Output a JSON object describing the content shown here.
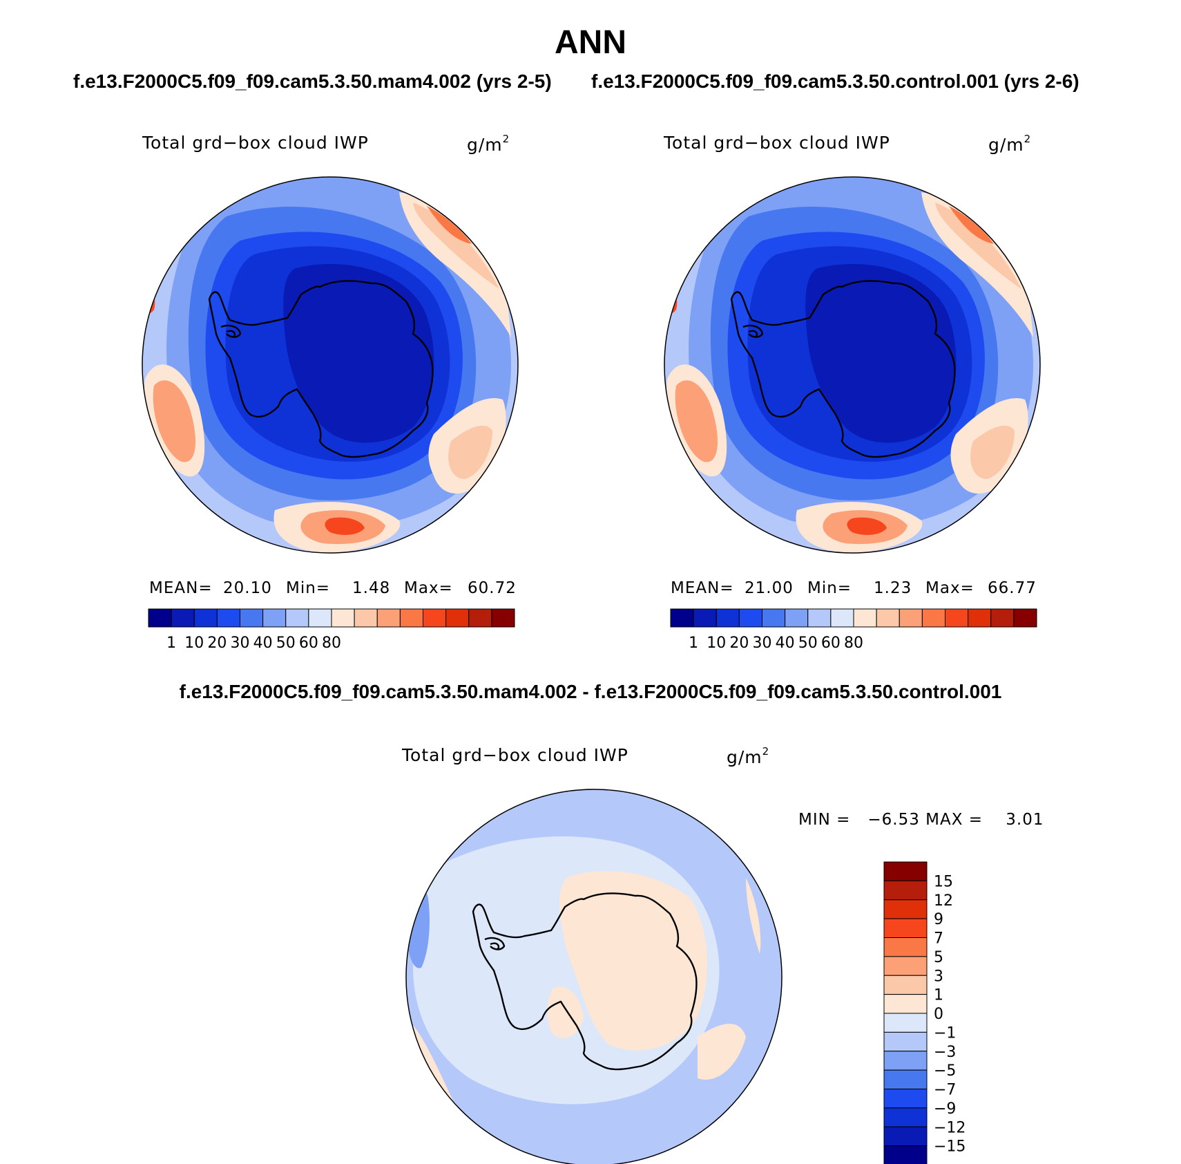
{
  "title": "ANN",
  "subtitle_left": "f.e13.F2000C5.f09_f09.cam5.3.50.mam4.002 (yrs 2-5)",
  "subtitle_right": "f.e13.F2000C5.f09_f09.cam5.3.50.control.001 (yrs 2-6)",
  "diff_title": "f.e13.F2000C5.f09_f09.cam5.3.50.mam4.002 - f.e13.F2000C5.f09_f09.cam5.3.50.control.001",
  "panels": [
    {
      "variable": "Total grd−box cloud IWP",
      "unit_base": "g/m",
      "unit_exp": "2",
      "mean_label": "MEAN=",
      "mean": "20.10",
      "min_label": "Min=",
      "min": "1.48",
      "max_label": "Max=",
      "max": "60.72"
    },
    {
      "variable": "Total grd−box cloud IWP",
      "unit_base": "g/m",
      "unit_exp": "2",
      "mean_label": "MEAN=",
      "mean": "21.00",
      "min_label": "Min=",
      "min": "1.23",
      "max_label": "Max=",
      "max": "66.77"
    },
    {
      "variable": "Total grd−box cloud IWP",
      "unit_base": "g/m",
      "unit_exp": "2",
      "minmax_text": "MIN =   −6.53 MAX =    3.01"
    }
  ],
  "colorbar_top": {
    "labels": [
      "1",
      "10",
      "20",
      "30",
      "40",
      "50",
      "60",
      "80"
    ],
    "colors": [
      "#00008a",
      "#0a1ab4",
      "#0f32d7",
      "#1e4bf0",
      "#4878f0",
      "#7ea0f5",
      "#b4c8fa",
      "#dce8fa",
      "#fde6d4",
      "#fcc8aa",
      "#fca078",
      "#fa7846",
      "#f5461e",
      "#e0300a",
      "#b41e0a",
      "#870000"
    ]
  },
  "colorbar_diff": {
    "labels": [
      "15",
      "12",
      "9",
      "7",
      "5",
      "3",
      "1",
      "0",
      "−1",
      "−3",
      "−5",
      "−7",
      "−9",
      "−12",
      "−15"
    ],
    "colors": [
      "#870000",
      "#b41e0a",
      "#e0300a",
      "#f5461e",
      "#fa7846",
      "#fca078",
      "#fcc8aa",
      "#fde6d4",
      "#dce8fa",
      "#b4c8fa",
      "#7ea0f5",
      "#4878f0",
      "#1e4bf0",
      "#0f32d7",
      "#0a1ab4",
      "#00008a"
    ]
  }
}
